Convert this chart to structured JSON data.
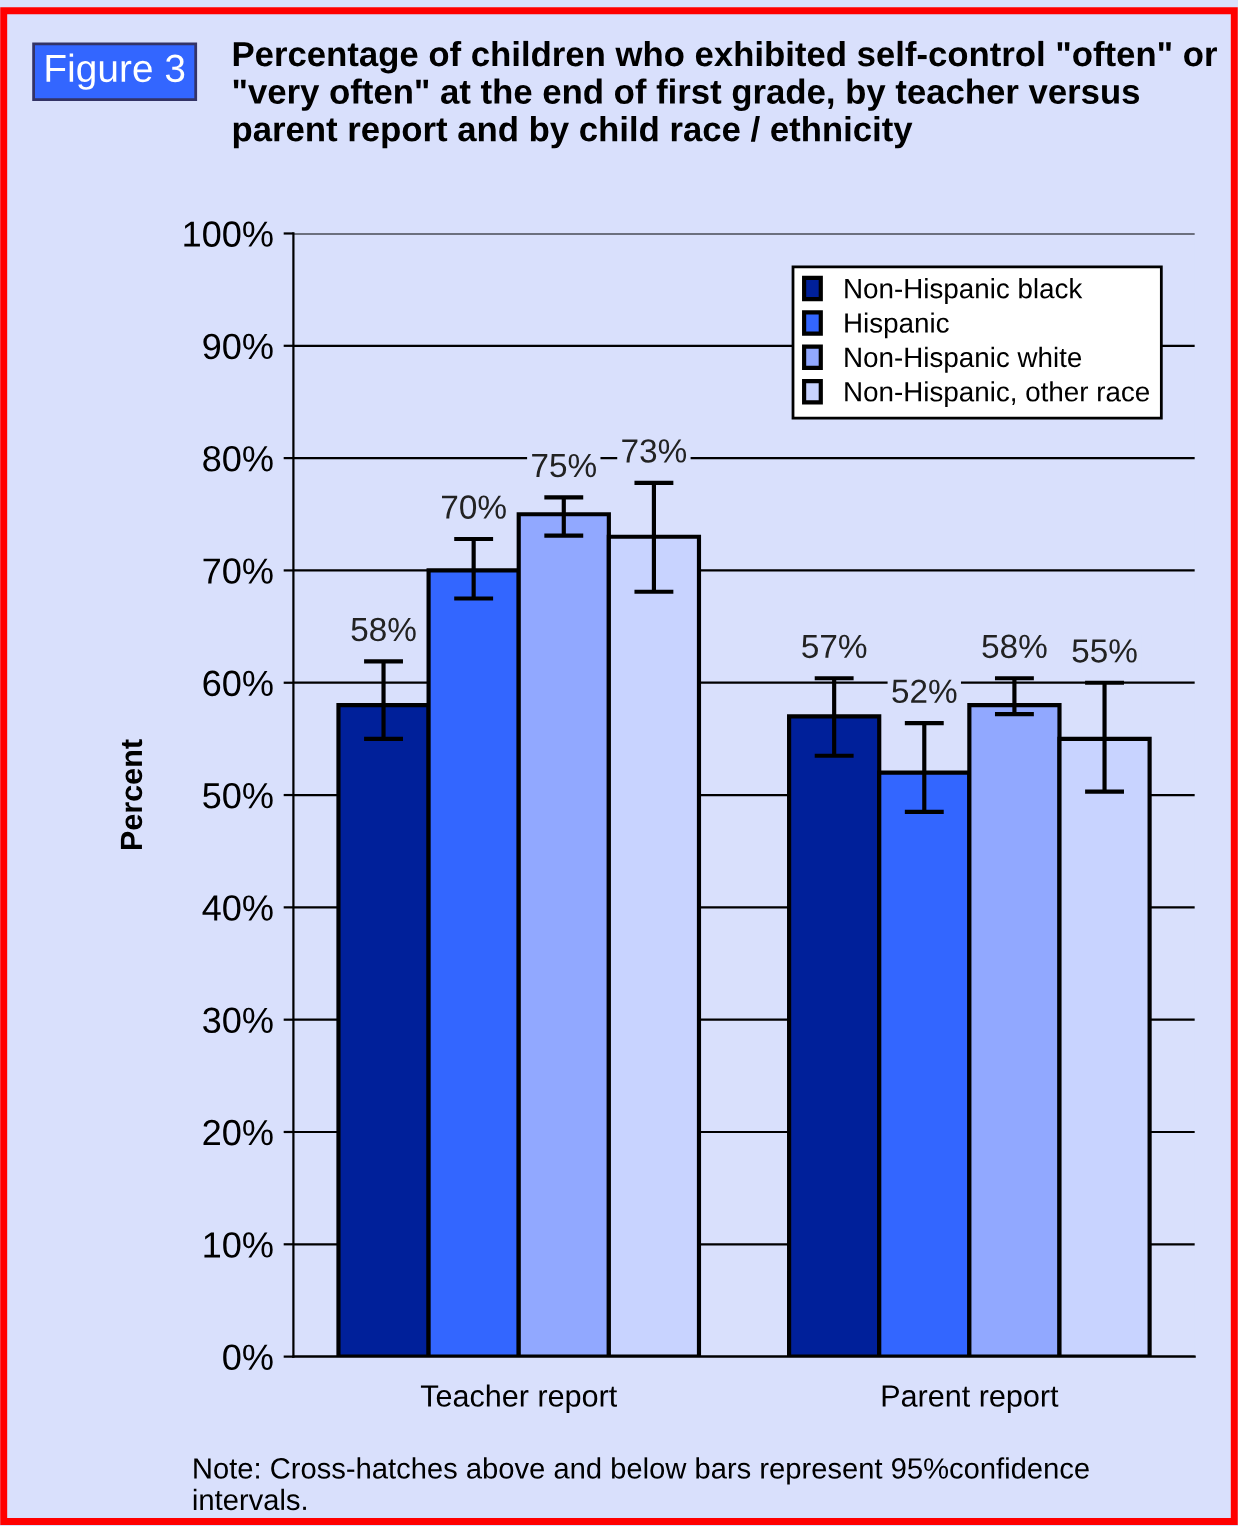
{
  "chart_data": {
    "type": "bar",
    "title": "Percentage of children who exhibited self-control \"often\" or \"very often\" at the end of first grade, by teacher versus parent report and by child race / ethnicity",
    "ylabel": "Percent",
    "annotations": [
      "Figure 3",
      "Note: Cross-hatches above and below bars represent 95%confidence intervals."
    ],
    "categories": [
      "Teacher report",
      "Parent report"
    ],
    "series": [
      {
        "name": "Non-Hispanic black",
        "color": "#00209a",
        "values": [
          58,
          57
        ],
        "value_labels": [
          "58%",
          "57%"
        ],
        "errors": [
          [
            55.0,
            61.9
          ],
          [
            53.5,
            60.4
          ]
        ]
      },
      {
        "name": "Hispanic",
        "color": "#3366ff",
        "values": [
          70,
          52
        ],
        "value_labels": [
          "70%",
          "52%"
        ],
        "errors": [
          [
            67.5,
            72.8
          ],
          [
            48.5,
            56.4
          ]
        ]
      },
      {
        "name": "Non-Hispanic white",
        "color": "#91a8ff",
        "values": [
          75,
          58
        ],
        "value_labels": [
          "75%",
          "58%"
        ],
        "errors": [
          [
            73.1,
            76.5
          ],
          [
            57.2,
            60.4
          ]
        ]
      },
      {
        "name": "Non-Hispanic, other race",
        "color": "#c8d3ff",
        "values": [
          73,
          55
        ],
        "value_labels": [
          "73%",
          "55%"
        ],
        "errors": [
          [
            68.1,
            77.8
          ],
          [
            50.3,
            60.0
          ]
        ]
      }
    ],
    "ylim": [
      0,
      100
    ],
    "yticks": [
      {
        "value": 0,
        "label": "0%"
      },
      {
        "value": 10,
        "label": "10%"
      },
      {
        "value": 20,
        "label": "20%"
      },
      {
        "value": 30,
        "label": "30%"
      },
      {
        "value": 40,
        "label": "40%"
      },
      {
        "value": 50,
        "label": "50%"
      },
      {
        "value": 60,
        "label": "60%"
      },
      {
        "value": 70,
        "label": "70%"
      },
      {
        "value": 80,
        "label": "80%"
      },
      {
        "value": 90,
        "label": "90%"
      },
      {
        "value": 100,
        "label": "100%"
      }
    ],
    "grid": "y",
    "legend": "top right"
  }
}
